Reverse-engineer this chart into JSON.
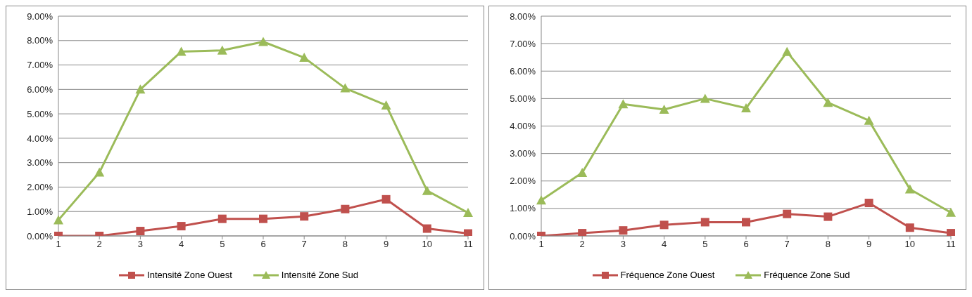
{
  "chart_data": [
    {
      "type": "line",
      "categories": [
        "1",
        "2",
        "3",
        "4",
        "5",
        "6",
        "7",
        "8",
        "9",
        "10",
        "11"
      ],
      "ylim": [
        0,
        9
      ],
      "yticks": [
        {
          "value": 0,
          "label": "0.00%"
        },
        {
          "value": 1,
          "label": "1.00%"
        },
        {
          "value": 2,
          "label": "2.00%"
        },
        {
          "value": 3,
          "label": "3.00%"
        },
        {
          "value": 4,
          "label": "4.00%"
        },
        {
          "value": 5,
          "label": "5.00%"
        },
        {
          "value": 6,
          "label": "6.00%"
        },
        {
          "value": 7,
          "label": "7.00%"
        },
        {
          "value": 8,
          "label": "8.00%"
        },
        {
          "value": 9,
          "label": "9.00%"
        }
      ],
      "grid": "y",
      "legend": "bottom",
      "line_style": "solid",
      "series": [
        {
          "name": "Intensité Zone Ouest",
          "color": "#c0504d",
          "marker": "square",
          "values": [
            0,
            0,
            0.2,
            0.4,
            0.7,
            0.7,
            0.8,
            1.1,
            1.5,
            0.3,
            0.1
          ]
        },
        {
          "name": "Intensité Zone Sud",
          "color": "#9bbb59",
          "marker": "triangle",
          "values": [
            0.65,
            2.6,
            6.0,
            7.55,
            7.6,
            7.95,
            7.3,
            6.05,
            5.35,
            1.85,
            0.95
          ]
        }
      ]
    },
    {
      "type": "line",
      "categories": [
        "1",
        "2",
        "3",
        "4",
        "5",
        "6",
        "7",
        "8",
        "9",
        "10",
        "11"
      ],
      "ylim": [
        0,
        8
      ],
      "yticks": [
        {
          "value": 0,
          "label": "0.00%"
        },
        {
          "value": 1,
          "label": "1.00%"
        },
        {
          "value": 2,
          "label": "2.00%"
        },
        {
          "value": 3,
          "label": "3.00%"
        },
        {
          "value": 4,
          "label": "4.00%"
        },
        {
          "value": 5,
          "label": "5.00%"
        },
        {
          "value": 6,
          "label": "6.00%"
        },
        {
          "value": 7,
          "label": "7.00%"
        },
        {
          "value": 8,
          "label": "8.00%"
        }
      ],
      "grid": "y",
      "legend": "bottom",
      "line_style": "solid",
      "series": [
        {
          "name": "Fréquence Zone Ouest",
          "color": "#c0504d",
          "marker": "square",
          "values": [
            0,
            0.1,
            0.2,
            0.4,
            0.5,
            0.5,
            0.8,
            0.7,
            1.2,
            0.3,
            0.1
          ]
        },
        {
          "name": "Fréquence Zone Sud",
          "color": "#9bbb59",
          "marker": "triangle",
          "values": [
            1.3,
            2.3,
            4.8,
            4.6,
            5.0,
            4.65,
            6.7,
            4.85,
            4.2,
            1.7,
            0.85
          ]
        }
      ]
    }
  ]
}
